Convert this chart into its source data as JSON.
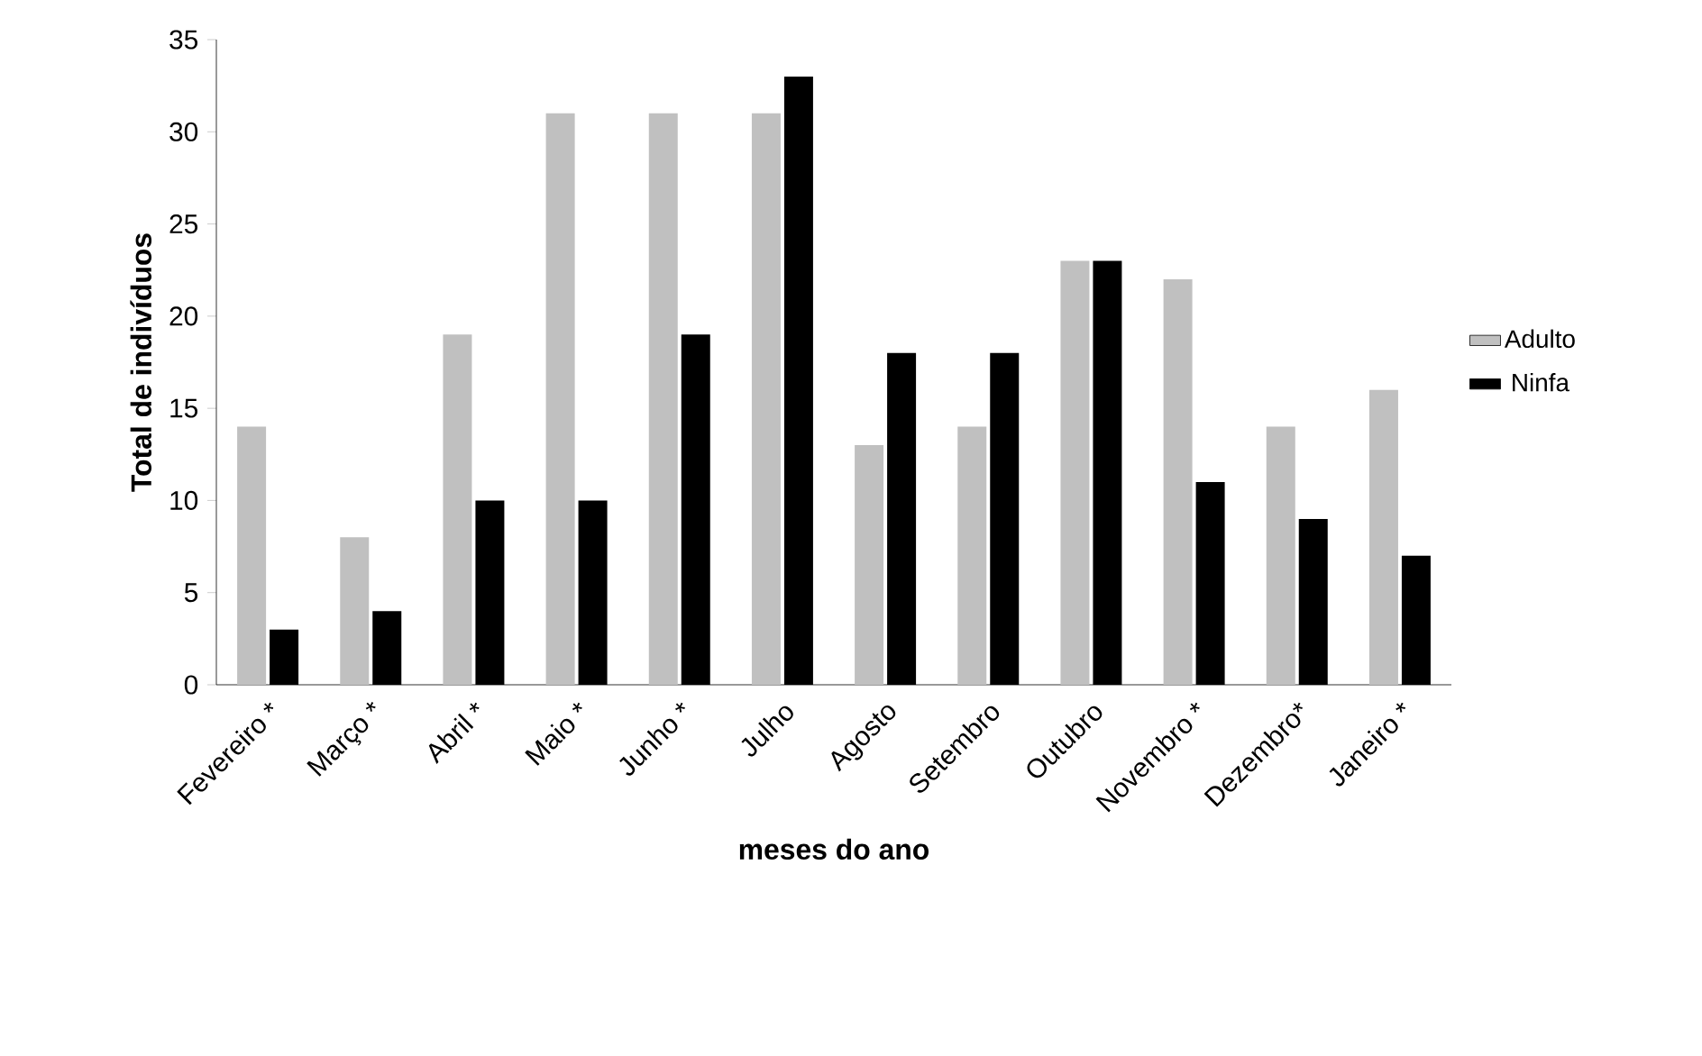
{
  "chart_data": {
    "type": "bar",
    "xlabel": "meses do ano",
    "ylabel": "Total de indivíduos",
    "categories": [
      "Fevereiro *",
      "Março *",
      "Abril *",
      "Maio *",
      "Junho *",
      "Julho",
      "Agosto",
      "Setembro",
      "Outubro",
      "Novembro *",
      "Dezembro*",
      "Janeiro *"
    ],
    "series": [
      {
        "name": "Adulto",
        "color": "#c0c0c0",
        "values": [
          14,
          8,
          19,
          31,
          31,
          31,
          13,
          14,
          23,
          22,
          14,
          16
        ]
      },
      {
        "name": "Ninfa",
        "color": "#000000",
        "values": [
          3,
          4,
          10,
          10,
          19,
          33,
          18,
          18,
          23,
          11,
          9,
          7
        ]
      }
    ],
    "ylim": [
      0,
      35
    ],
    "yticks": [
      0,
      5,
      10,
      15,
      20,
      25,
      30,
      35
    ],
    "legend": "right",
    "grid": false
  }
}
